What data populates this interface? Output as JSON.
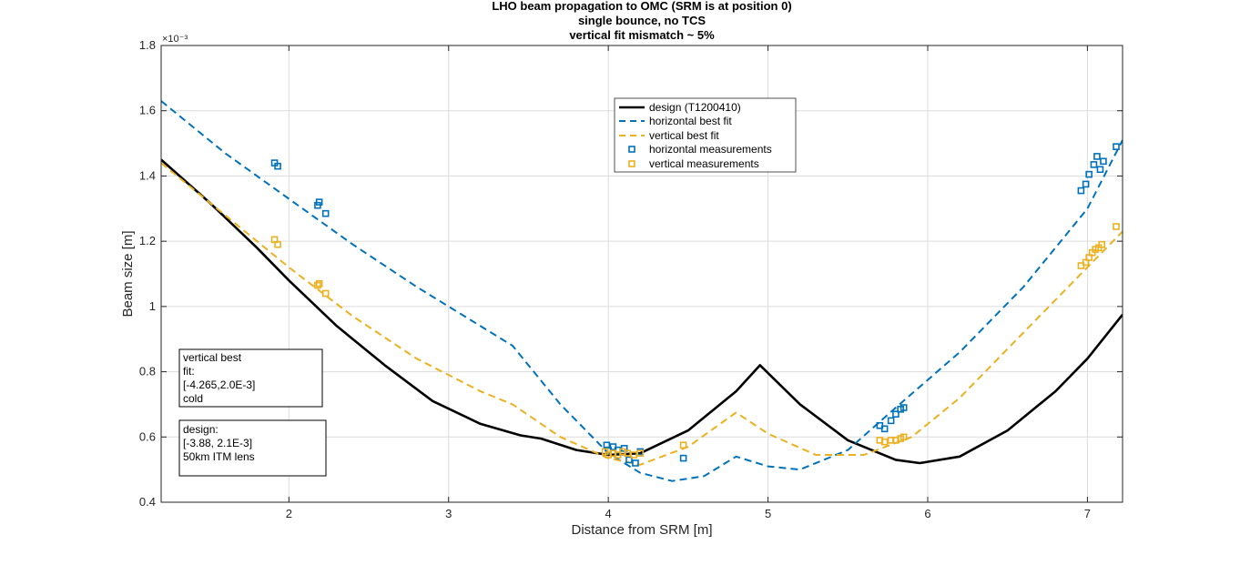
{
  "chart_data": {
    "type": "line",
    "title": [
      "LHO beam propagation to OMC (SRM is at position 0)",
      "single bounce, no TCS",
      "vertical fit mismatch ~ 5%"
    ],
    "xlabel": "Distance from SRM [m]",
    "ylabel": "Beam size [m]",
    "y_exponent_label": "×10⁻³",
    "y_scale_factor": 0.001,
    "xlim": [
      1.2,
      7.22
    ],
    "ylim": [
      0.4,
      1.8
    ],
    "xticks": [
      2,
      3,
      4,
      5,
      6,
      7
    ],
    "xtick_labels": [
      "2",
      "3",
      "4",
      "5",
      "6",
      "7"
    ],
    "yticks": [
      0.4,
      0.6,
      0.8,
      1.0,
      1.2,
      1.4,
      1.6,
      1.8
    ],
    "ytick_labels": [
      "0.4",
      "0.6",
      "0.8",
      "1",
      "1.2",
      "1.4",
      "1.6",
      "1.8"
    ],
    "grid": true,
    "legend_position": "top-center",
    "series": [
      {
        "name": "design (T1200410)",
        "style": "solid",
        "color": "#000000",
        "x": [
          1.2,
          1.5,
          1.8,
          2.0,
          2.3,
          2.6,
          2.9,
          3.2,
          3.45,
          3.58,
          3.8,
          4.0,
          4.2,
          4.5,
          4.8,
          4.95,
          5.2,
          5.5,
          5.8,
          5.95,
          6.2,
          6.5,
          6.8,
          7.0,
          7.22
        ],
        "y": [
          1.45,
          1.32,
          1.18,
          1.08,
          0.94,
          0.82,
          0.71,
          0.64,
          0.605,
          0.595,
          0.56,
          0.545,
          0.55,
          0.62,
          0.74,
          0.82,
          0.7,
          0.59,
          0.53,
          0.52,
          0.54,
          0.62,
          0.74,
          0.84,
          0.975
        ]
      },
      {
        "name": "horizontal best fit",
        "style": "dashed",
        "color": "#0072bd",
        "x": [
          1.2,
          1.6,
          2.0,
          2.4,
          2.8,
          3.2,
          3.4,
          3.7,
          4.0,
          4.2,
          4.4,
          4.6,
          4.8,
          5.0,
          5.2,
          5.5,
          5.8,
          6.2,
          6.6,
          7.0,
          7.22
        ],
        "y": [
          1.63,
          1.47,
          1.33,
          1.19,
          1.06,
          0.94,
          0.88,
          0.7,
          0.55,
          0.49,
          0.465,
          0.48,
          0.54,
          0.51,
          0.5,
          0.56,
          0.69,
          0.86,
          1.06,
          1.3,
          1.51
        ]
      },
      {
        "name": "vertical best fit",
        "style": "dashed",
        "color": "#edb120",
        "x": [
          1.2,
          1.6,
          2.0,
          2.4,
          2.8,
          3.2,
          3.4,
          3.7,
          4.0,
          4.2,
          4.5,
          4.8,
          5.0,
          5.3,
          5.6,
          5.9,
          6.2,
          6.6,
          7.0,
          7.22
        ],
        "y": [
          1.44,
          1.28,
          1.12,
          0.97,
          0.84,
          0.74,
          0.7,
          0.6,
          0.535,
          0.515,
          0.57,
          0.675,
          0.61,
          0.545,
          0.545,
          0.6,
          0.72,
          0.92,
          1.12,
          1.23
        ]
      },
      {
        "name": "horizontal measurements",
        "style": "markers",
        "marker": "square",
        "color": "#0072bd",
        "x": [
          1.91,
          1.93,
          2.18,
          2.19,
          2.23,
          3.99,
          4.0,
          4.03,
          4.06,
          4.1,
          4.13,
          4.17,
          4.2,
          4.47,
          5.7,
          5.73,
          5.77,
          5.8,
          5.83,
          5.85,
          6.96,
          6.99,
          7.01,
          7.04,
          7.06,
          7.08,
          7.1,
          7.18
        ],
        "y": [
          1.44,
          1.43,
          1.31,
          1.32,
          1.285,
          0.575,
          0.56,
          0.57,
          0.56,
          0.565,
          0.53,
          0.52,
          0.555,
          0.535,
          0.635,
          0.625,
          0.65,
          0.67,
          0.685,
          0.69,
          1.355,
          1.375,
          1.405,
          1.435,
          1.46,
          1.42,
          1.445,
          1.49
        ]
      },
      {
        "name": "vertical measurements",
        "style": "markers",
        "marker": "square",
        "color": "#edb120",
        "x": [
          1.91,
          1.93,
          2.18,
          2.19,
          2.23,
          3.98,
          4.0,
          4.03,
          4.06,
          4.09,
          4.12,
          4.16,
          4.2,
          4.47,
          5.7,
          5.73,
          5.77,
          5.8,
          5.83,
          5.85,
          6.96,
          6.99,
          7.01,
          7.03,
          7.05,
          7.07,
          7.09,
          7.18
        ],
        "y": [
          1.205,
          1.19,
          1.065,
          1.07,
          1.04,
          0.555,
          0.545,
          0.55,
          0.545,
          0.555,
          0.55,
          0.545,
          0.55,
          0.575,
          0.59,
          0.585,
          0.59,
          0.59,
          0.595,
          0.6,
          1.125,
          1.135,
          1.15,
          1.165,
          1.175,
          1.18,
          1.19,
          1.245
        ]
      }
    ],
    "annotations": [
      {
        "id": "vertical-fit-box",
        "lines": [
          "vertical best",
          "fit:",
          "[-4.265,2.0E-3]",
          "cold"
        ]
      },
      {
        "id": "design-box",
        "lines": [
          "design:",
          "[-3.88, 2.1E-3]",
          "50km ITM lens"
        ]
      }
    ]
  }
}
